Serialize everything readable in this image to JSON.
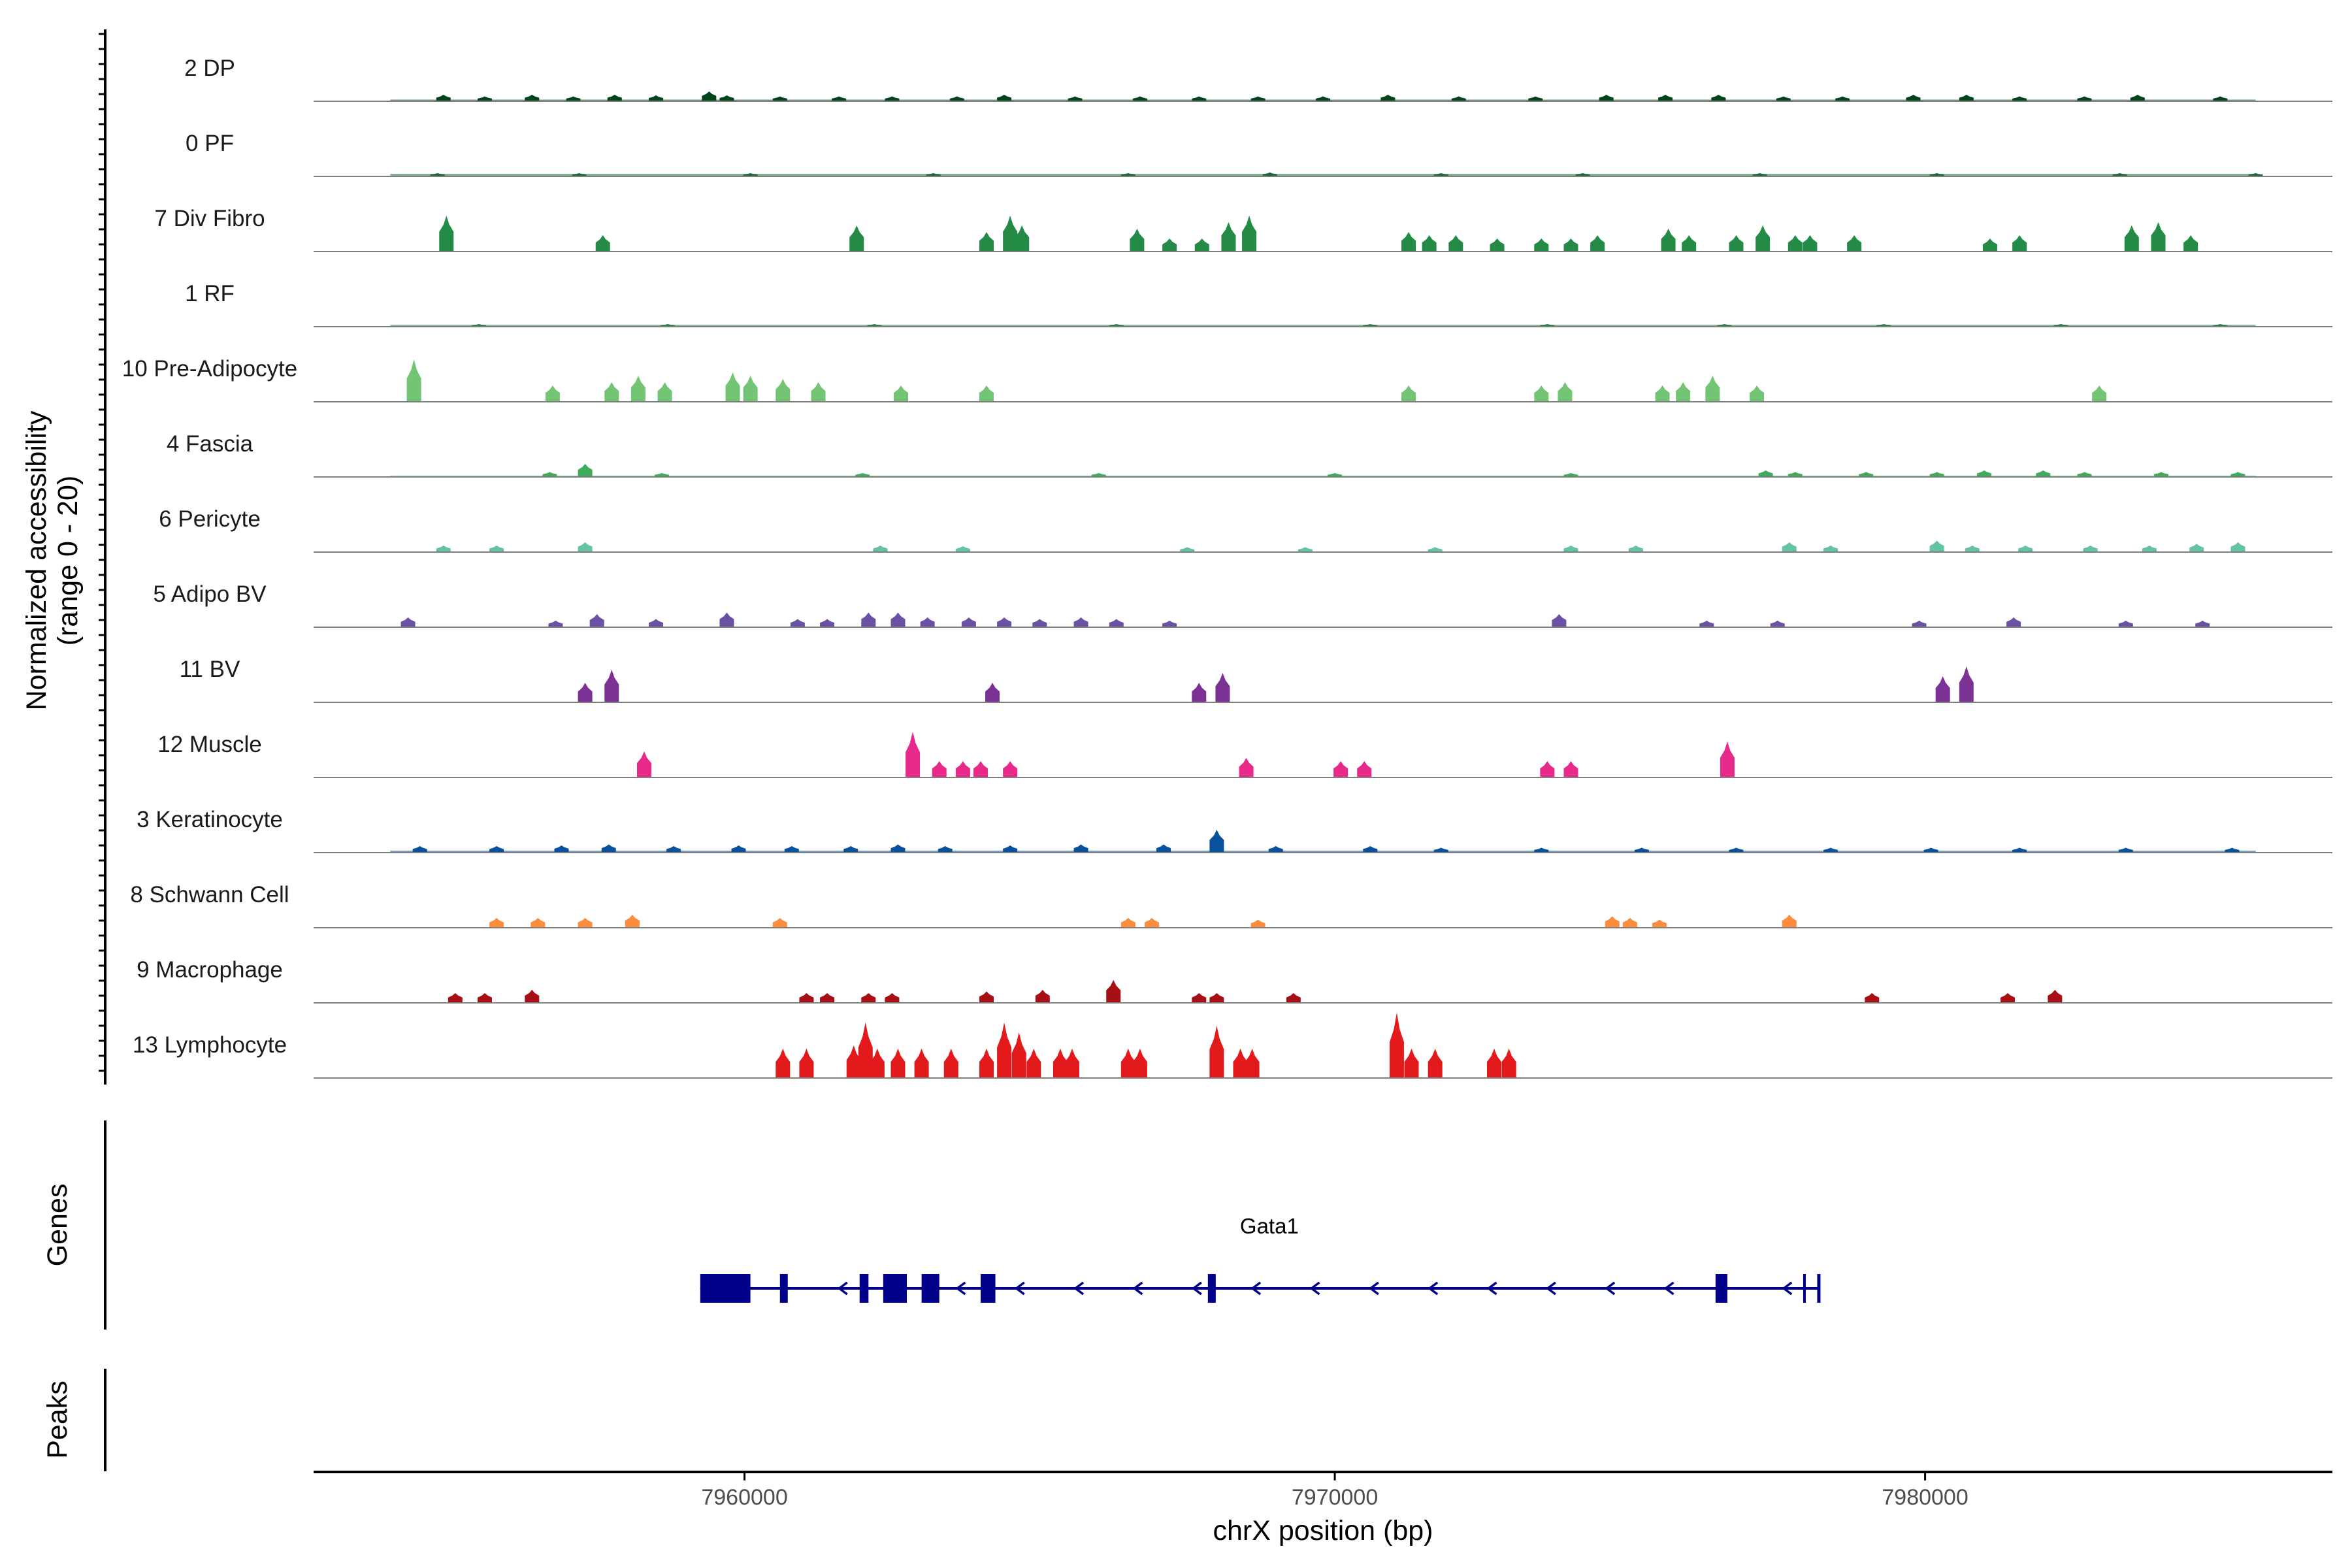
{
  "chart_data": {
    "type": "coverage",
    "ylabel_line1": "Normalized accessibility",
    "ylabel_line2": "(range 0 - 20)",
    "xlabel": "chrX position (bp)",
    "xlim": [
      7952700,
      7986900
    ],
    "ylim": [
      0,
      20
    ],
    "xticks": [
      {
        "value": 7960000,
        "label": "7960000"
      },
      {
        "value": 7970000,
        "label": "7970000"
      },
      {
        "value": 7980000,
        "label": "7980000"
      }
    ],
    "genes_label": "Genes",
    "peaks_label": "Peaks",
    "tracks": [
      {
        "name": "2 DP",
        "color": "#00441b",
        "baseline": 0.5,
        "peaks": [
          [
            7954900,
            2
          ],
          [
            7955600,
            1.5
          ],
          [
            7956400,
            2
          ],
          [
            7957100,
            1.5
          ],
          [
            7957800,
            2
          ],
          [
            7958500,
            1.8
          ],
          [
            7959400,
            3
          ],
          [
            7959700,
            1.8
          ],
          [
            7960600,
            1.5
          ],
          [
            7961600,
            1.5
          ],
          [
            7962500,
            1.5
          ],
          [
            7963600,
            1.5
          ],
          [
            7964400,
            2
          ],
          [
            7965600,
            1.5
          ],
          [
            7966700,
            1.5
          ],
          [
            7967700,
            1.5
          ],
          [
            7968700,
            1.5
          ],
          [
            7969800,
            1.5
          ],
          [
            7970900,
            2
          ],
          [
            7972100,
            1.5
          ],
          [
            7973400,
            1.5
          ],
          [
            7974600,
            2
          ],
          [
            7975600,
            2
          ],
          [
            7976500,
            2
          ],
          [
            7977600,
            1.5
          ],
          [
            7978600,
            1.5
          ],
          [
            7979800,
            2
          ],
          [
            7980700,
            2
          ],
          [
            7981600,
            1.5
          ],
          [
            7982700,
            1.5
          ],
          [
            7983600,
            2
          ],
          [
            7985000,
            1.5
          ]
        ]
      },
      {
        "name": "0 PF",
        "color": "#1b6b3a",
        "baseline": 0.8,
        "peaks": [
          [
            7954800,
            1
          ],
          [
            7957200,
            1
          ],
          [
            7960100,
            1
          ],
          [
            7963200,
            1
          ],
          [
            7966500,
            1
          ],
          [
            7968900,
            1.2
          ],
          [
            7971800,
            1
          ],
          [
            7974200,
            1
          ],
          [
            7977200,
            1
          ],
          [
            7980200,
            1
          ],
          [
            7983300,
            1
          ],
          [
            7985600,
            1
          ]
        ]
      },
      {
        "name": "7 Div Fibro",
        "color": "#238b45",
        "baseline": 0,
        "peaks": [
          [
            7954950,
            11
          ],
          [
            7957600,
            5
          ],
          [
            7961900,
            8
          ],
          [
            7964100,
            6
          ],
          [
            7964500,
            11
          ],
          [
            7964700,
            8
          ],
          [
            7966650,
            7
          ],
          [
            7967200,
            4
          ],
          [
            7967750,
            4
          ],
          [
            7968200,
            9
          ],
          [
            7968550,
            11
          ],
          [
            7971250,
            6
          ],
          [
            7971600,
            5
          ],
          [
            7972050,
            5
          ],
          [
            7972750,
            4
          ],
          [
            7973500,
            4
          ],
          [
            7974000,
            4
          ],
          [
            7974450,
            5
          ],
          [
            7975650,
            7
          ],
          [
            7976000,
            5
          ],
          [
            7976800,
            5
          ],
          [
            7977250,
            8
          ],
          [
            7977800,
            5
          ],
          [
            7978050,
            5
          ],
          [
            7978800,
            5
          ],
          [
            7981100,
            4
          ],
          [
            7981600,
            5
          ],
          [
            7983500,
            8
          ],
          [
            7983950,
            9
          ],
          [
            7984500,
            5
          ]
        ]
      },
      {
        "name": "1 RF",
        "color": "#2a7e4a",
        "baseline": 0.6,
        "peaks": [
          [
            7955500,
            0.8
          ],
          [
            7958700,
            0.8
          ],
          [
            7962200,
            0.8
          ],
          [
            7966300,
            0.8
          ],
          [
            7970600,
            0.8
          ],
          [
            7973600,
            0.8
          ],
          [
            7976600,
            0.8
          ],
          [
            7979300,
            0.8
          ],
          [
            7982300,
            0.8
          ],
          [
            7985000,
            0.8
          ]
        ]
      },
      {
        "name": "10 Pre-Adipocyte",
        "color": "#74c476",
        "baseline": 0,
        "peaks": [
          [
            7954400,
            13
          ],
          [
            7956750,
            5
          ],
          [
            7957750,
            6
          ],
          [
            7958200,
            8
          ],
          [
            7958650,
            6
          ],
          [
            7959800,
            9
          ],
          [
            7960100,
            8
          ],
          [
            7960650,
            7
          ],
          [
            7961250,
            6
          ],
          [
            7962650,
            5
          ],
          [
            7964100,
            5
          ],
          [
            7971250,
            5
          ],
          [
            7973500,
            5
          ],
          [
            7973900,
            6
          ],
          [
            7975550,
            5
          ],
          [
            7975900,
            6
          ],
          [
            7976400,
            8
          ],
          [
            7977150,
            5
          ],
          [
            7982950,
            5
          ]
        ]
      },
      {
        "name": "4 Fascia",
        "color": "#41ab5d",
        "baseline": 0.4,
        "peaks": [
          [
            7957300,
            4
          ],
          [
            7956700,
            1.5
          ],
          [
            7958600,
            1.2
          ],
          [
            7962000,
            1.2
          ],
          [
            7966000,
            1.2
          ],
          [
            7970000,
            1.2
          ],
          [
            7974000,
            1.2
          ],
          [
            7977300,
            2
          ],
          [
            7977800,
            1.5
          ],
          [
            7979000,
            1.5
          ],
          [
            7980200,
            1.5
          ],
          [
            7981000,
            2
          ],
          [
            7982000,
            2
          ],
          [
            7982700,
            1.5
          ],
          [
            7984000,
            1.5
          ],
          [
            7985300,
            1.5
          ]
        ]
      },
      {
        "name": "6 Pericyte",
        "color": "#66c2a4",
        "baseline": 0,
        "peaks": [
          [
            7954900,
            2
          ],
          [
            7955800,
            2
          ],
          [
            7957300,
            3
          ],
          [
            7962300,
            2
          ],
          [
            7963700,
            1.8
          ],
          [
            7967500,
            1.5
          ],
          [
            7969500,
            1.5
          ],
          [
            7971700,
            1.5
          ],
          [
            7974000,
            2
          ],
          [
            7975100,
            2
          ],
          [
            7977700,
            3
          ],
          [
            7978400,
            2
          ],
          [
            7980200,
            3.5
          ],
          [
            7980800,
            2
          ],
          [
            7981700,
            2
          ],
          [
            7982800,
            2
          ],
          [
            7983800,
            2
          ],
          [
            7984600,
            2.5
          ],
          [
            7985300,
            3
          ]
        ]
      },
      {
        "name": "5 Adipo BV",
        "color": "#6a51a3",
        "baseline": 0,
        "peaks": [
          [
            7954300,
            3
          ],
          [
            7956800,
            2
          ],
          [
            7957500,
            4
          ],
          [
            7958500,
            2.5
          ],
          [
            7959700,
            4.5
          ],
          [
            7960900,
            2.5
          ],
          [
            7961400,
            2.5
          ],
          [
            7962100,
            4.5
          ],
          [
            7962600,
            4.5
          ],
          [
            7963100,
            3
          ],
          [
            7963800,
            3
          ],
          [
            7964400,
            3
          ],
          [
            7965000,
            2.5
          ],
          [
            7965700,
            3
          ],
          [
            7966300,
            2.5
          ],
          [
            7967200,
            2
          ],
          [
            7973800,
            4
          ],
          [
            7976300,
            2
          ],
          [
            7977500,
            2
          ],
          [
            7979900,
            2
          ],
          [
            7981500,
            3
          ],
          [
            7983400,
            2
          ],
          [
            7984700,
            2
          ]
        ]
      },
      {
        "name": "11 BV",
        "color": "#7b3294",
        "baseline": 0,
        "peaks": [
          [
            7957300,
            6
          ],
          [
            7957750,
            10
          ],
          [
            7964200,
            6
          ],
          [
            7967700,
            6
          ],
          [
            7968100,
            9
          ],
          [
            7980300,
            8
          ],
          [
            7980700,
            11
          ]
        ]
      },
      {
        "name": "12 Muscle",
        "color": "#e7298a",
        "baseline": 0,
        "peaks": [
          [
            7958300,
            8
          ],
          [
            7962850,
            14
          ],
          [
            7963300,
            5
          ],
          [
            7963700,
            5
          ],
          [
            7964000,
            5
          ],
          [
            7964500,
            5
          ],
          [
            7968500,
            6
          ],
          [
            7970100,
            5
          ],
          [
            7970500,
            5
          ],
          [
            7973600,
            5
          ],
          [
            7974000,
            5
          ],
          [
            7976650,
            11
          ]
        ]
      },
      {
        "name": "3 Keratinocyte",
        "color": "#08519c",
        "baseline": 0.6,
        "peaks": [
          [
            7954500,
            2
          ],
          [
            7955800,
            2
          ],
          [
            7956900,
            2.2
          ],
          [
            7957700,
            2.5
          ],
          [
            7958800,
            2
          ],
          [
            7959900,
            2.2
          ],
          [
            7960800,
            2
          ],
          [
            7961800,
            2
          ],
          [
            7962600,
            2.5
          ],
          [
            7963400,
            2
          ],
          [
            7964500,
            2.2
          ],
          [
            7965700,
            2.5
          ],
          [
            7967100,
            2.5
          ],
          [
            7968000,
            7
          ],
          [
            7969000,
            2
          ],
          [
            7970600,
            2
          ],
          [
            7971800,
            1.5
          ],
          [
            7973500,
            1.5
          ],
          [
            7975200,
            1.5
          ],
          [
            7976800,
            1.5
          ],
          [
            7978400,
            1.5
          ],
          [
            7980100,
            1.5
          ],
          [
            7981600,
            1.5
          ],
          [
            7983400,
            1.5
          ],
          [
            7985200,
            1.5
          ]
        ]
      },
      {
        "name": "8 Schwann Cell",
        "color": "#fd8d3c",
        "baseline": 0,
        "peaks": [
          [
            7955800,
            3
          ],
          [
            7956500,
            3
          ],
          [
            7957300,
            3
          ],
          [
            7958100,
            4
          ],
          [
            7960600,
            3
          ],
          [
            7966500,
            3
          ],
          [
            7966900,
            3
          ],
          [
            7968700,
            2.5
          ],
          [
            7974700,
            3.5
          ],
          [
            7975000,
            3
          ],
          [
            7975500,
            2.5
          ],
          [
            7977700,
            4
          ]
        ]
      },
      {
        "name": "9 Macrophage",
        "color": "#a50f15",
        "baseline": 0,
        "peaks": [
          [
            7955100,
            3
          ],
          [
            7955600,
            3
          ],
          [
            7956400,
            4
          ],
          [
            7961050,
            3
          ],
          [
            7961400,
            3
          ],
          [
            7962100,
            3
          ],
          [
            7962500,
            3
          ],
          [
            7964100,
            3.5
          ],
          [
            7965050,
            4
          ],
          [
            7966250,
            7
          ],
          [
            7967700,
            3
          ],
          [
            7968000,
            3
          ],
          [
            7969300,
            3
          ],
          [
            7979100,
            3
          ],
          [
            7981400,
            3
          ],
          [
            7982200,
            4
          ]
        ]
      },
      {
        "name": "13 Lymphocyte",
        "color": "#e31a1c",
        "baseline": 0,
        "peaks": [
          [
            7960650,
            9
          ],
          [
            7961050,
            9
          ],
          [
            7961850,
            10
          ],
          [
            7962050,
            17
          ],
          [
            7962250,
            9
          ],
          [
            7962600,
            9
          ],
          [
            7963000,
            9
          ],
          [
            7963500,
            9
          ],
          [
            7964100,
            9
          ],
          [
            7964400,
            17
          ],
          [
            7964650,
            14
          ],
          [
            7964900,
            9
          ],
          [
            7965350,
            9
          ],
          [
            7965550,
            9
          ],
          [
            7966500,
            9
          ],
          [
            7966700,
            9
          ],
          [
            7968000,
            16
          ],
          [
            7968400,
            9
          ],
          [
            7968600,
            9
          ],
          [
            7971050,
            20
          ],
          [
            7971300,
            9
          ],
          [
            7971700,
            9
          ],
          [
            7972700,
            9
          ],
          [
            7972950,
            9
          ]
        ]
      }
    ],
    "gene": {
      "name": "Gata1",
      "strand": "-",
      "start": 7959250,
      "end": 7978200,
      "exons": [
        [
          7959250,
          7960100
        ],
        [
          7960600,
          7960700
        ],
        [
          7961950,
          7962100
        ],
        [
          7962350,
          7962750
        ],
        [
          7963000,
          7963300
        ],
        [
          7964000,
          7964250
        ],
        [
          7967850,
          7967950
        ],
        [
          7976450,
          7976650
        ]
      ]
    }
  }
}
